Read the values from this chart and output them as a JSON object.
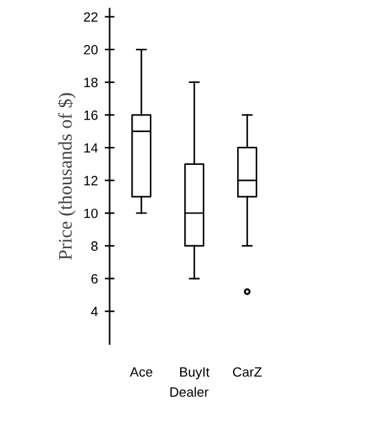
{
  "chart_data": {
    "type": "box",
    "xlabel": "Dealer",
    "ylabel": "Price (thousands of $)",
    "categories": [
      "Ace",
      "BuyIt",
      "CarZ"
    ],
    "boxes": [
      {
        "low": 10,
        "q1": 11,
        "median": 15,
        "q3": 16,
        "high": 20
      },
      {
        "low": 6,
        "q1": 8,
        "median": 10,
        "q3": 13,
        "high": 18
      },
      {
        "low": 8,
        "q1": 11,
        "median": 12,
        "q3": 14,
        "high": 16,
        "outliers": [
          5.2
        ]
      }
    ],
    "color": "#000000",
    "ylim": [
      2,
      22.5
    ],
    "yticks": [
      4,
      6,
      8,
      10,
      12,
      14,
      16,
      18,
      20,
      22
    ],
    "grid": false
  }
}
